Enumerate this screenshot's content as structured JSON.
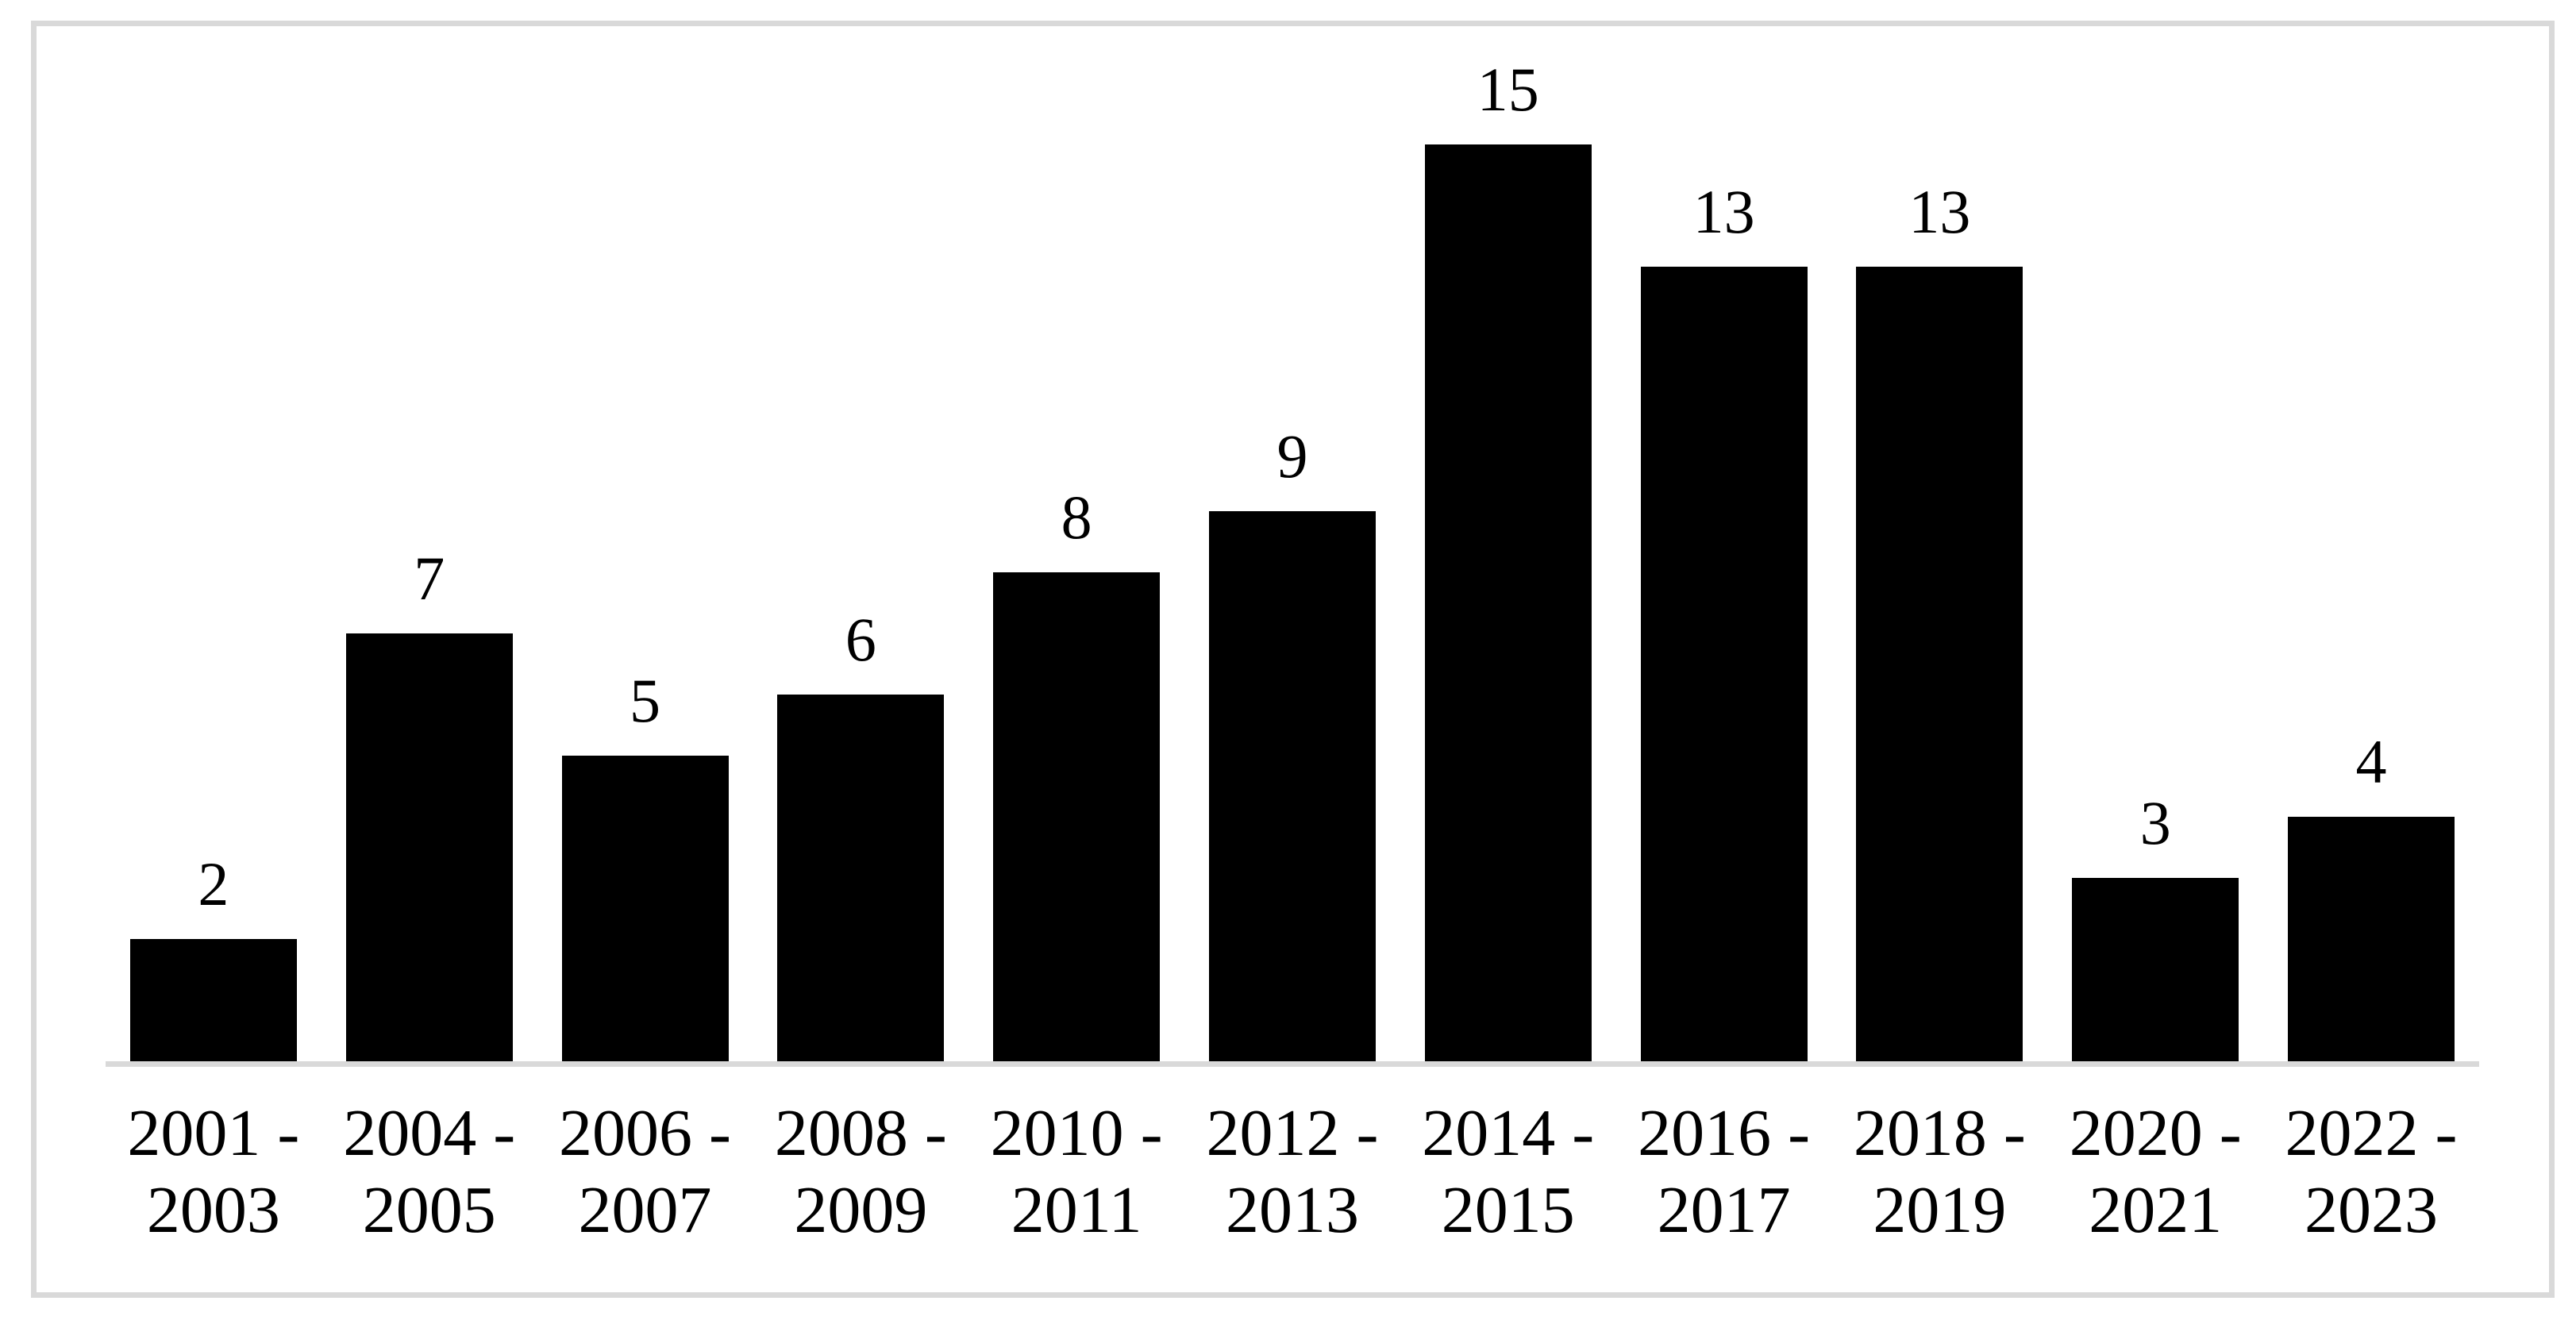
{
  "chart_data": {
    "type": "bar",
    "title": "",
    "xlabel": "",
    "ylabel": "",
    "categories": [
      "2001 - 2003",
      "2004 - 2005",
      "2006 - 2007",
      "2008 - 2009",
      "2010 - 2011",
      "2012 - 2013",
      "2014 - 2015",
      "2016 - 2017",
      "2018 - 2019",
      "2020 - 2021",
      "2022 - 2023"
    ],
    "categories_display": [
      {
        "line1": "2001 -",
        "line2": "2003"
      },
      {
        "line1": "2004 -",
        "line2": "2005"
      },
      {
        "line1": "2006 -",
        "line2": "2007"
      },
      {
        "line1": "2008 -",
        "line2": "2009"
      },
      {
        "line1": "2010 -",
        "line2": "2011"
      },
      {
        "line1": "2012 -",
        "line2": "2013"
      },
      {
        "line1": "2014 -",
        "line2": "2015"
      },
      {
        "line1": "2016 -",
        "line2": "2017"
      },
      {
        "line1": "2018 -",
        "line2": "2019"
      },
      {
        "line1": "2020 -",
        "line2": "2021"
      },
      {
        "line1": "2022 -",
        "line2": "2023"
      }
    ],
    "values": [
      2,
      7,
      5,
      6,
      8,
      9,
      15,
      13,
      13,
      3,
      4
    ],
    "ylim": [
      0,
      15.5
    ],
    "grid": false,
    "legend": "none",
    "data_labels_shown": true,
    "bar_color": "#000000",
    "axis_line_color": "#d9d9d9",
    "frame_border_color": "#d9d9d9",
    "background_color": "#ffffff"
  }
}
